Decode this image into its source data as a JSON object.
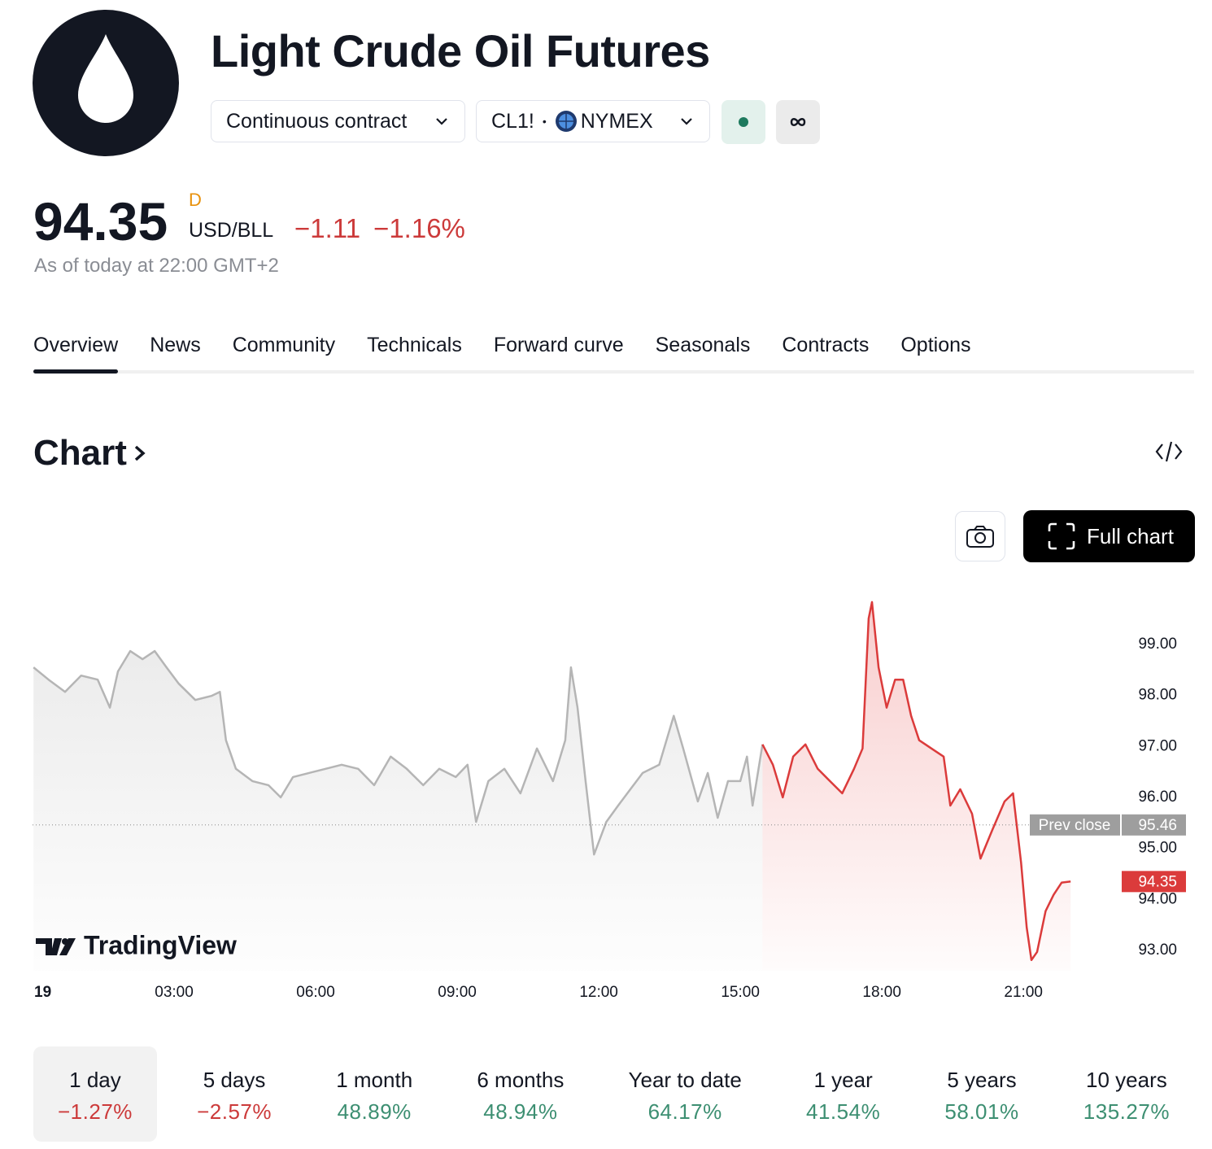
{
  "header": {
    "title": "Light Crude Oil Futures",
    "contract": "Continuous contract",
    "symbol": "CL1!",
    "exchange": "NYMEX",
    "price": "94.35",
    "price_flag": "D",
    "currency": "USD/BLL",
    "change": "−1.11",
    "change_percent": "−1.16%",
    "as_of": "As of today at 22:00 GMT+2"
  },
  "tabs": {
    "items": [
      "Overview",
      "News",
      "Community",
      "Technicals",
      "Forward curve",
      "Seasonals",
      "Contracts",
      "Options"
    ],
    "active": 0
  },
  "chart_section": {
    "title": "Chart",
    "full_chart": "Full chart",
    "watermark": "TradingView"
  },
  "chart": {
    "type": "line",
    "x": [
      0.02,
      0.34,
      0.69,
      1.03,
      1.38,
      1.64,
      1.81,
      2.07,
      2.33,
      2.59,
      2.84,
      3.1,
      3.45,
      3.79,
      3.97,
      4.1,
      4.31,
      4.66,
      5.0,
      5.26,
      5.52,
      5.86,
      6.21,
      6.55,
      6.9,
      7.24,
      7.59,
      7.93,
      8.28,
      8.62,
      8.97,
      9.22,
      9.4,
      9.66,
      10.0,
      10.34,
      10.69,
      11.03,
      11.29,
      11.41,
      11.55,
      11.72,
      11.9,
      12.16,
      12.41,
      12.67,
      12.93,
      13.28,
      13.59,
      13.79,
      14.1,
      14.31,
      14.52,
      14.74,
      15.0,
      15.14,
      15.26,
      15.47,
      15.69,
      15.9,
      16.12,
      16.38,
      16.64,
      16.9,
      17.16,
      17.41,
      17.59,
      17.72,
      17.79,
      17.93,
      18.1,
      18.28,
      18.45,
      18.62,
      18.79,
      19.05,
      19.31,
      19.45,
      19.66,
      19.91,
      20.09,
      20.34,
      20.6,
      20.78,
      20.95,
      21.07,
      21.17,
      21.29,
      21.47,
      21.64,
      21.81,
      22.0
    ],
    "series": [
      {
        "color": "#b5b5b5",
        "values": [
          98.55,
          98.31,
          98.07,
          98.39,
          98.31,
          97.76,
          98.47,
          98.87,
          98.71,
          98.87,
          98.55,
          98.23,
          97.91,
          97.99,
          98.07,
          97.12,
          96.56,
          96.32,
          96.24,
          96.0,
          96.4,
          96.48,
          96.56,
          96.64,
          96.56,
          96.24,
          96.8,
          96.56,
          96.24,
          96.56,
          96.4,
          96.64,
          95.52,
          96.32,
          96.56,
          96.08,
          96.96,
          96.32,
          97.12,
          98.55,
          97.76,
          96.32,
          94.88,
          95.52,
          95.84,
          96.16,
          96.48,
          96.64,
          97.6,
          96.96,
          95.92,
          96.48,
          95.6,
          96.32,
          96.32,
          96.8,
          95.84,
          97.04,
          null,
          null,
          null,
          null,
          null,
          null,
          null,
          null,
          null,
          null,
          null,
          null,
          null,
          null,
          null,
          null,
          null,
          null,
          null,
          null,
          null,
          null,
          null,
          null,
          null,
          null,
          null,
          null,
          null,
          null,
          null,
          null,
          null,
          null
        ]
      },
      {
        "color": "#db3b3b",
        "values": [
          null,
          null,
          null,
          null,
          null,
          null,
          null,
          null,
          null,
          null,
          null,
          null,
          null,
          null,
          null,
          null,
          null,
          null,
          null,
          null,
          null,
          null,
          null,
          null,
          null,
          null,
          null,
          null,
          null,
          null,
          null,
          null,
          null,
          null,
          null,
          null,
          null,
          null,
          null,
          null,
          null,
          null,
          null,
          null,
          null,
          null,
          null,
          null,
          null,
          null,
          null,
          null,
          null,
          null,
          null,
          null,
          null,
          97.04,
          96.64,
          96.0,
          96.8,
          97.04,
          96.56,
          96.32,
          96.08,
          96.56,
          96.96,
          99.51,
          99.83,
          98.55,
          97.76,
          98.31,
          98.31,
          97.6,
          97.12,
          96.96,
          96.8,
          95.84,
          96.16,
          95.68,
          94.8,
          95.36,
          95.92,
          96.08,
          94.72,
          93.45,
          92.81,
          92.97,
          93.77,
          94.09,
          94.33,
          94.35
        ]
      }
    ],
    "xlim": [
      0,
      23.1
    ],
    "ylim": [
      92.6,
      100.1
    ],
    "xticks": [
      {
        "value": 0,
        "label": "19"
      },
      {
        "value": 3,
        "label": "03:00"
      },
      {
        "value": 6,
        "label": "06:00"
      },
      {
        "value": 9,
        "label": "09:00"
      },
      {
        "value": 12,
        "label": "12:00"
      },
      {
        "value": 15,
        "label": "15:00"
      },
      {
        "value": 18,
        "label": "18:00"
      },
      {
        "value": 21,
        "label": "21:00"
      }
    ],
    "yticks": [
      {
        "value": 93,
        "label": "93.00"
      },
      {
        "value": 94,
        "label": "94.00"
      },
      {
        "value": 95,
        "label": "95.00"
      },
      {
        "value": 96,
        "label": "96.00"
      },
      {
        "value": 97,
        "label": "97.00"
      },
      {
        "value": 98,
        "label": "98.00"
      },
      {
        "value": 99,
        "label": "99.00"
      }
    ],
    "prev_close": {
      "label": "Prev close",
      "value": 95.46
    }
  },
  "periods": {
    "items": [
      {
        "label": "1 day",
        "change": "−1.27%"
      },
      {
        "label": "5 days",
        "change": "−2.57%"
      },
      {
        "label": "1 month",
        "change": "48.89%"
      },
      {
        "label": "6 months",
        "change": "48.94%"
      },
      {
        "label": "Year to date",
        "change": "64.17%"
      },
      {
        "label": "1 year",
        "change": "41.54%"
      },
      {
        "label": "5 years",
        "change": "58.01%"
      },
      {
        "label": "10 years",
        "change": "135.27%"
      }
    ],
    "active": 0
  }
}
